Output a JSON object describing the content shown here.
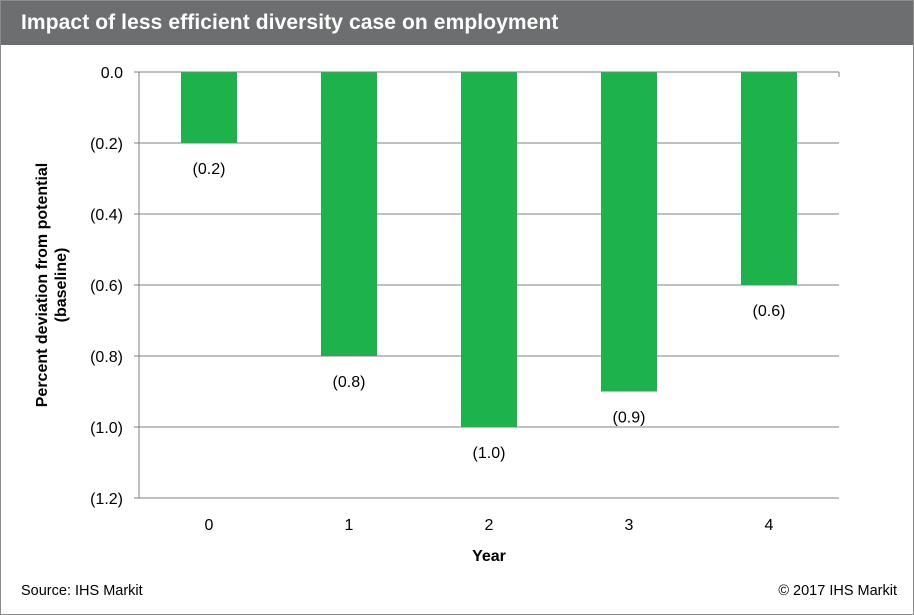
{
  "header": {
    "title": "Impact of less efficient diversity case on employment"
  },
  "footer": {
    "source": "Source: IHS Markit",
    "copyright": "© 2017 IHS Markit"
  },
  "colors": {
    "bar": "#1db24b",
    "title_bar": "#6d6e70",
    "grid": "#808080"
  },
  "chart_data": {
    "type": "bar",
    "title": "Impact of less efficient diversity case on employment",
    "xlabel": "Year",
    "ylabel": "Percent deviation from potential (baseline)",
    "ylabel_lines": [
      "Percent deviation from potential",
      "(baseline)"
    ],
    "categories": [
      "0",
      "1",
      "2",
      "3",
      "4"
    ],
    "values": [
      -0.2,
      -0.8,
      -1.0,
      -0.9,
      -0.6
    ],
    "data_labels": [
      "(0.2)",
      "(0.8)",
      "(1.0)",
      "(0.9)",
      "(0.6)"
    ],
    "ylim": [
      -1.2,
      0.0
    ],
    "yticks": [
      0.0,
      -0.2,
      -0.4,
      -0.6,
      -0.8,
      -1.0,
      -1.2
    ],
    "ytick_labels": [
      "0.0",
      "(0.2)",
      "(0.4)",
      "(0.6)",
      "(0.8)",
      "(1.0)",
      "(1.2)"
    ],
    "grid": true,
    "legend": "none"
  }
}
